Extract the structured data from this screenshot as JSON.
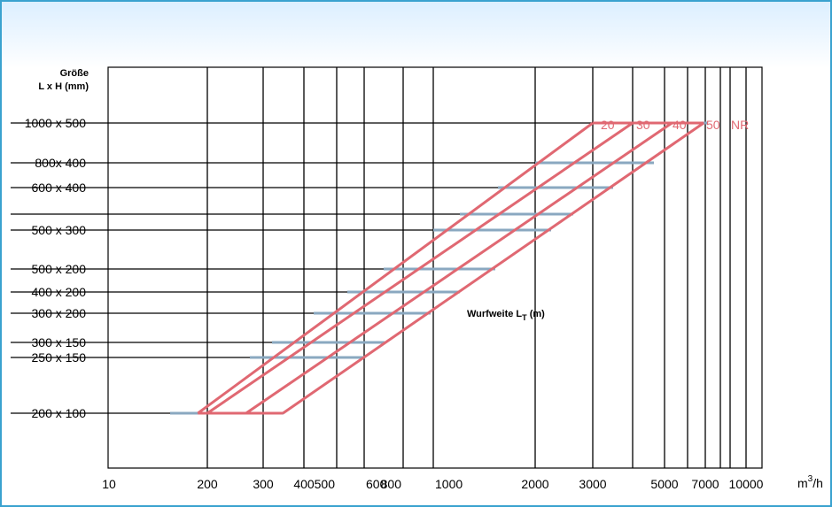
{
  "chart_data": {
    "type": "line",
    "y_header_line1": "Größe",
    "y_header_line2": "L x H (mm)",
    "x_unit": "m",
    "x_unit_sup": "3",
    "x_unit_suffix": "/h",
    "x_scale": "log",
    "xlim": [
      10,
      10000
    ],
    "x_ticks": [
      "10",
      "200",
      "300",
      "400",
      "500",
      "600",
      "800",
      "1000",
      "2000",
      "3000",
      "5000",
      "7000",
      "10000"
    ],
    "y_categories": [
      "1000 x 500",
      "800x 400",
      "600 x 400",
      "",
      "500 x 300",
      "500 x 200",
      "400 x 200",
      "300 x 200",
      "300 x 150",
      "250 x 150",
      "200 x 100"
    ],
    "series": [
      {
        "name": "20",
        "points": [
          [
            150,
            "200 x 100"
          ],
          [
            3000,
            "1000 x 500"
          ]
        ]
      },
      {
        "name": "30",
        "points": [
          [
            200,
            "200 x 100"
          ],
          [
            4000,
            "1000 x 500"
          ]
        ]
      },
      {
        "name": "40",
        "points": [
          [
            265,
            "200 x 100"
          ],
          [
            5300,
            "1000 x 500"
          ]
        ]
      },
      {
        "name": "50",
        "points": [
          [
            345,
            "200 x 100"
          ],
          [
            6900,
            "1000 x 500"
          ]
        ]
      }
    ],
    "series_suffix_label": "NR",
    "annotation": {
      "text": "Wurfweite L",
      "sub": "T",
      "suffix": " (m)"
    },
    "grid": true,
    "colors": {
      "diagonal": "#e06872",
      "horizontal_band": "#8aa8c0",
      "label": "#e06872",
      "frame": "#3aa2cf"
    }
  }
}
